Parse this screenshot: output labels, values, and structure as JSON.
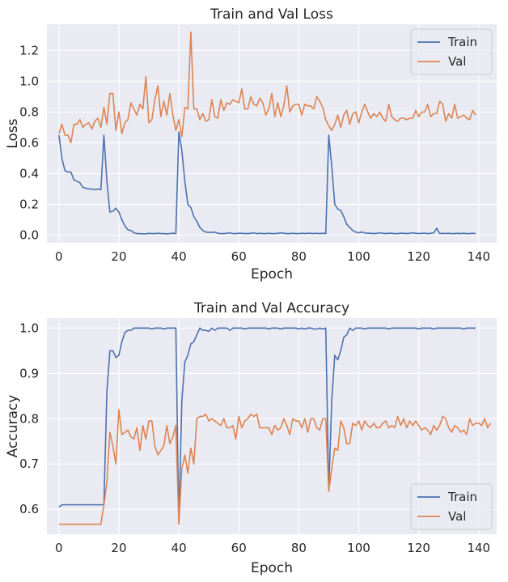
{
  "colors": {
    "train": "#4c72b0",
    "val": "#dd8452",
    "panel_bg": "#eaeaf2"
  },
  "chart_data": [
    {
      "type": "line",
      "title": "Train and Val Loss",
      "xlabel": "Epoch",
      "ylabel": "Loss",
      "xlim": [
        -4,
        146
      ],
      "ylim": [
        -0.05,
        1.37
      ],
      "xticks": [
        0,
        20,
        40,
        60,
        80,
        100,
        120,
        140
      ],
      "yticks": [
        0.0,
        0.2,
        0.4,
        0.6,
        0.8,
        1.0,
        1.2
      ],
      "ytick_labels": [
        "0.0",
        "0.2",
        "0.4",
        "0.6",
        "0.8",
        "1.0",
        "1.2"
      ],
      "grid": true,
      "legend": "top-right",
      "series": [
        {
          "name": "Train",
          "values": [
            0.65,
            0.5,
            0.42,
            0.41,
            0.41,
            0.36,
            0.35,
            0.34,
            0.31,
            0.305,
            0.3,
            0.3,
            0.295,
            0.3,
            0.295,
            0.65,
            0.35,
            0.15,
            0.155,
            0.175,
            0.15,
            0.1,
            0.06,
            0.035,
            0.03,
            0.015,
            0.01,
            0.01,
            0.008,
            0.008,
            0.012,
            0.01,
            0.01,
            0.012,
            0.01,
            0.01,
            0.008,
            0.01,
            0.012,
            0.01,
            0.67,
            0.55,
            0.35,
            0.2,
            0.18,
            0.12,
            0.09,
            0.05,
            0.03,
            0.02,
            0.018,
            0.018,
            0.02,
            0.012,
            0.01,
            0.01,
            0.012,
            0.015,
            0.01,
            0.01,
            0.012,
            0.012,
            0.01,
            0.01,
            0.012,
            0.015,
            0.01,
            0.012,
            0.01,
            0.01,
            0.012,
            0.01,
            0.01,
            0.012,
            0.015,
            0.012,
            0.01,
            0.01,
            0.012,
            0.01,
            0.01,
            0.012,
            0.01,
            0.012,
            0.012,
            0.01,
            0.012,
            0.01,
            0.012,
            0.01,
            0.65,
            0.45,
            0.2,
            0.17,
            0.16,
            0.12,
            0.07,
            0.05,
            0.03,
            0.02,
            0.015,
            0.02,
            0.015,
            0.012,
            0.012,
            0.01,
            0.012,
            0.015,
            0.012,
            0.01,
            0.012,
            0.012,
            0.01,
            0.01,
            0.012,
            0.012,
            0.01,
            0.012,
            0.015,
            0.012,
            0.01,
            0.012,
            0.012,
            0.01,
            0.012,
            0.015,
            0.045,
            0.01,
            0.012,
            0.01,
            0.012,
            0.01,
            0.01,
            0.012,
            0.01,
            0.012,
            0.01,
            0.01,
            0.012,
            0.01
          ]
        },
        {
          "name": "Val",
          "values": [
            0.66,
            0.72,
            0.65,
            0.65,
            0.6,
            0.72,
            0.72,
            0.75,
            0.7,
            0.72,
            0.73,
            0.69,
            0.74,
            0.76,
            0.7,
            0.83,
            0.72,
            0.92,
            0.92,
            0.68,
            0.8,
            0.66,
            0.73,
            0.75,
            0.86,
            0.82,
            0.78,
            0.85,
            0.82,
            1.03,
            0.73,
            0.75,
            0.88,
            0.97,
            0.77,
            0.87,
            0.78,
            0.92,
            0.78,
            0.68,
            0.75,
            0.64,
            0.83,
            0.82,
            1.32,
            0.82,
            0.82,
            0.75,
            0.79,
            0.74,
            0.75,
            0.88,
            0.77,
            0.76,
            0.88,
            0.81,
            0.86,
            0.85,
            0.88,
            0.87,
            0.86,
            0.95,
            0.82,
            0.82,
            0.9,
            0.85,
            0.84,
            0.89,
            0.86,
            0.78,
            0.82,
            0.92,
            0.77,
            0.86,
            0.77,
            0.84,
            0.97,
            0.8,
            0.84,
            0.85,
            0.85,
            0.78,
            0.85,
            0.84,
            0.84,
            0.82,
            0.9,
            0.87,
            0.83,
            0.75,
            0.71,
            0.68,
            0.72,
            0.78,
            0.7,
            0.78,
            0.81,
            0.72,
            0.79,
            0.8,
            0.73,
            0.8,
            0.85,
            0.8,
            0.76,
            0.79,
            0.77,
            0.8,
            0.76,
            0.74,
            0.85,
            0.77,
            0.75,
            0.74,
            0.76,
            0.76,
            0.75,
            0.76,
            0.76,
            0.81,
            0.77,
            0.8,
            0.8,
            0.85,
            0.77,
            0.79,
            0.79,
            0.87,
            0.85,
            0.74,
            0.79,
            0.76,
            0.85,
            0.76,
            0.77,
            0.78,
            0.76,
            0.75,
            0.81,
            0.78
          ]
        }
      ]
    },
    {
      "type": "line",
      "title": "Train and Val Accuracy",
      "xlabel": "Epoch",
      "ylabel": "Accuracy",
      "xlim": [
        -4,
        146
      ],
      "ylim": [
        0.545,
        1.022
      ],
      "xticks": [
        0,
        20,
        40,
        60,
        80,
        100,
        120,
        140
      ],
      "yticks": [
        0.6,
        0.7,
        0.8,
        0.9,
        1.0
      ],
      "ytick_labels": [
        "0.6",
        "0.7",
        "0.8",
        "0.9",
        "1.0"
      ],
      "grid": true,
      "legend": "bottom-right",
      "series": [
        {
          "name": "Train",
          "values": [
            0.605,
            0.61,
            0.61,
            0.61,
            0.61,
            0.61,
            0.61,
            0.61,
            0.61,
            0.61,
            0.61,
            0.61,
            0.61,
            0.61,
            0.61,
            0.61,
            0.86,
            0.95,
            0.95,
            0.935,
            0.94,
            0.97,
            0.99,
            0.995,
            0.995,
            1.0,
            1.0,
            1.0,
            1.0,
            1.0,
            1.0,
            0.998,
            1.0,
            1.0,
            1.0,
            0.998,
            1.0,
            1.0,
            1.0,
            1.0,
            0.57,
            0.84,
            0.925,
            0.94,
            0.965,
            0.97,
            0.985,
            1.0,
            0.995,
            0.995,
            0.993,
            1.0,
            0.995,
            1.0,
            1.0,
            1.0,
            1.0,
            0.995,
            1.0,
            1.0,
            1.0,
            1.0,
            0.998,
            1.0,
            1.0,
            1.0,
            1.0,
            1.0,
            1.0,
            1.0,
            0.998,
            1.0,
            1.0,
            1.0,
            0.998,
            1.0,
            1.0,
            1.0,
            1.0,
            1.0,
            0.998,
            1.0,
            0.998,
            1.0,
            1.0,
            0.998,
            0.998,
            1.0,
            0.998,
            1.0,
            0.64,
            0.84,
            0.94,
            0.93,
            0.95,
            0.98,
            0.985,
            1.0,
            0.995,
            1.0,
            1.0,
            1.0,
            0.998,
            1.0,
            1.0,
            1.0,
            1.0,
            1.0,
            1.0,
            1.0,
            0.998,
            1.0,
            1.0,
            1.0,
            1.0,
            1.0,
            1.0,
            1.0,
            1.0,
            1.0,
            0.998,
            1.0,
            1.0,
            1.0,
            1.0,
            0.998,
            1.0,
            1.0,
            1.0,
            1.0,
            1.0,
            1.0,
            1.0,
            1.0,
            1.0,
            0.998,
            1.0,
            1.0,
            1.0,
            1.0
          ]
        },
        {
          "name": "Val",
          "values": [
            0.567,
            0.567,
            0.567,
            0.567,
            0.567,
            0.567,
            0.567,
            0.567,
            0.567,
            0.567,
            0.567,
            0.567,
            0.567,
            0.567,
            0.567,
            0.61,
            0.66,
            0.77,
            0.74,
            0.7,
            0.82,
            0.765,
            0.77,
            0.775,
            0.76,
            0.755,
            0.78,
            0.73,
            0.785,
            0.755,
            0.795,
            0.795,
            0.74,
            0.72,
            0.73,
            0.74,
            0.785,
            0.745,
            0.76,
            0.785,
            0.567,
            0.69,
            0.72,
            0.68,
            0.735,
            0.7,
            0.8,
            0.805,
            0.805,
            0.81,
            0.795,
            0.8,
            0.795,
            0.79,
            0.785,
            0.8,
            0.78,
            0.78,
            0.785,
            0.755,
            0.805,
            0.78,
            0.795,
            0.8,
            0.81,
            0.805,
            0.81,
            0.78,
            0.78,
            0.78,
            0.78,
            0.765,
            0.785,
            0.775,
            0.78,
            0.8,
            0.785,
            0.765,
            0.8,
            0.795,
            0.795,
            0.78,
            0.8,
            0.77,
            0.8,
            0.8,
            0.78,
            0.775,
            0.8,
            0.8,
            0.64,
            0.69,
            0.735,
            0.73,
            0.795,
            0.78,
            0.745,
            0.745,
            0.79,
            0.785,
            0.795,
            0.775,
            0.795,
            0.785,
            0.78,
            0.79,
            0.78,
            0.78,
            0.79,
            0.795,
            0.78,
            0.785,
            0.78,
            0.805,
            0.785,
            0.8,
            0.78,
            0.795,
            0.785,
            0.795,
            0.785,
            0.775,
            0.78,
            0.775,
            0.765,
            0.785,
            0.775,
            0.785,
            0.805,
            0.8,
            0.78,
            0.77,
            0.785,
            0.78,
            0.77,
            0.775,
            0.765,
            0.8,
            0.785,
            0.79,
            0.79,
            0.785,
            0.8,
            0.78,
            0.79
          ]
        }
      ]
    }
  ]
}
